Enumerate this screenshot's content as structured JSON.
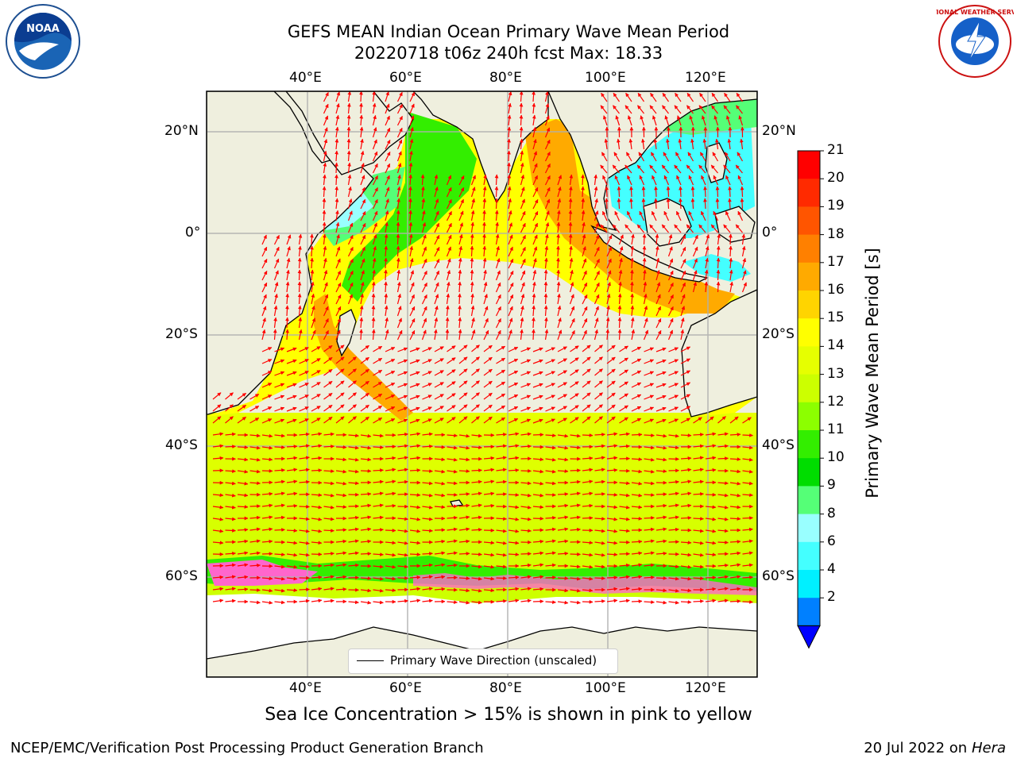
{
  "title": {
    "line1": "GEFS MEAN Indian Ocean Primary Wave Mean Period",
    "line2": "20220718 t06z 240h fcst   Max: 18.33"
  },
  "logos": {
    "left": {
      "name": "noaa-logo",
      "text": "NOAA"
    },
    "right": {
      "name": "nws-logo",
      "text": "NATIONAL WEATHER SERVICE"
    }
  },
  "map": {
    "lon_ticks_top": [
      "40°E",
      "60°E",
      "80°E",
      "100°E",
      "120°E"
    ],
    "lon_ticks_bottom": [
      "40°E",
      "60°E",
      "80°E",
      "100°E",
      "120°E"
    ],
    "lat_ticks_left": [
      "20°N",
      "0°",
      "20°S",
      "40°S",
      "60°S"
    ],
    "lat_ticks_right": [
      "20°N",
      "0°",
      "20°S",
      "40°S",
      "60°S"
    ],
    "lon_range": [
      20,
      130
    ],
    "lat_range": [
      -72,
      27
    ],
    "legend": "Primary Wave Direction (unscaled)",
    "land_color": "#efefde",
    "arrow_color": "#ff0000"
  },
  "colorbar": {
    "label": "Primary Wave Mean Period [s]",
    "ticks": [
      "21",
      "20",
      "19",
      "18",
      "17",
      "16",
      "15",
      "14",
      "13",
      "12",
      "11",
      "10",
      "9",
      "8",
      "6",
      "4",
      "2"
    ],
    "colors": [
      "#ff0000",
      "#ff2a00",
      "#ff5500",
      "#ff8000",
      "#ffaa00",
      "#ffd400",
      "#ffff00",
      "#e6ff00",
      "#ccff00",
      "#8cff00",
      "#33ee00",
      "#00dd00",
      "#55ff77",
      "#99ffff",
      "#44ffff",
      "#00f0ff",
      "#0080ff"
    ],
    "extend_color": "#0000ff"
  },
  "caption": "Sea Ice Concentration > 15% is shown in pink to yellow",
  "footer": {
    "left": "NCEP/EMC/Verification Post Processing Product Generation Branch",
    "right_date": "20 Jul 2022 on ",
    "right_host": "Hera"
  }
}
